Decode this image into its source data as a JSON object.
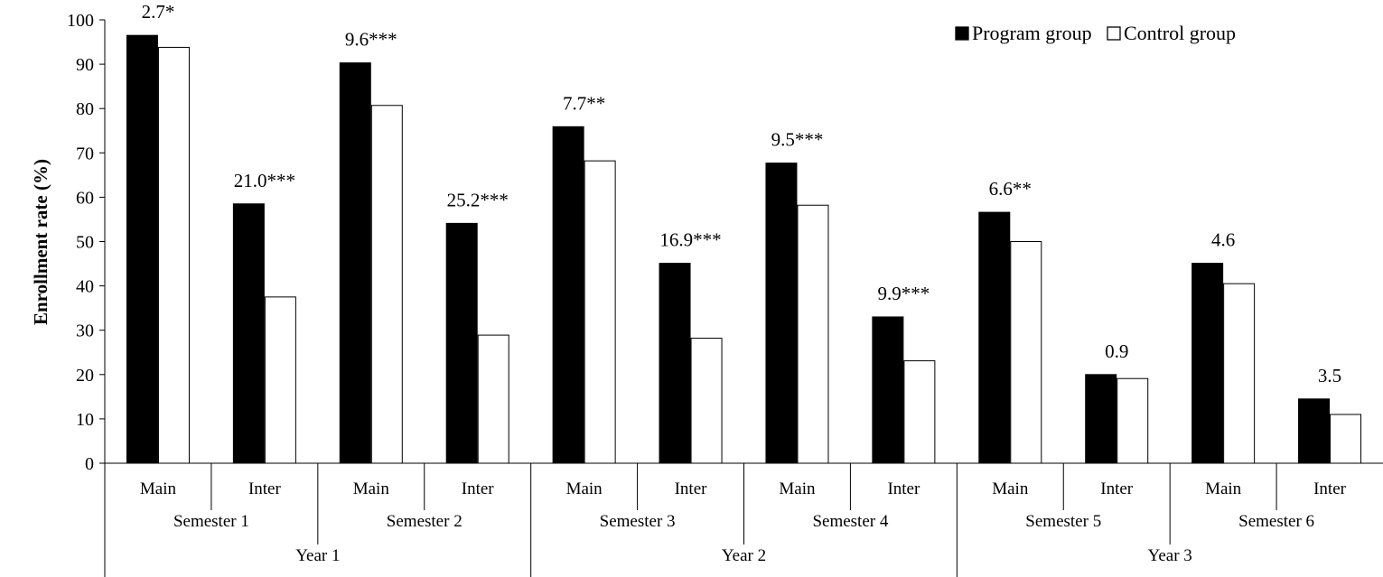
{
  "chart_data": {
    "type": "bar",
    "ylabel": "Enrollment rate (%)",
    "ylim": [
      0,
      100
    ],
    "yticks": [
      0,
      10,
      20,
      30,
      40,
      50,
      60,
      70,
      80,
      90,
      100
    ],
    "grid": false,
    "legend_position": "top-right",
    "categories": [
      "Main",
      "Inter",
      "Main",
      "Inter",
      "Main",
      "Inter",
      "Main",
      "Inter",
      "Main",
      "Inter",
      "Main",
      "Inter"
    ],
    "semesters": [
      {
        "label": "Semester 1",
        "start": 0,
        "span": 2
      },
      {
        "label": "Semester 2",
        "start": 2,
        "span": 2
      },
      {
        "label": "Semester 3",
        "start": 4,
        "span": 2
      },
      {
        "label": "Semester 4",
        "start": 6,
        "span": 2
      },
      {
        "label": "Semester 5",
        "start": 8,
        "span": 2
      },
      {
        "label": "Semester 6",
        "start": 10,
        "span": 2
      }
    ],
    "years": [
      {
        "label": "Year 1",
        "start": 0,
        "span": 4
      },
      {
        "label": "Year 2",
        "start": 4,
        "span": 4
      },
      {
        "label": "Year 3",
        "start": 8,
        "span": 4
      }
    ],
    "series": [
      {
        "name": "Program group",
        "color": "#000000",
        "values": [
          96.5,
          58.5,
          90.3,
          54.1,
          75.9,
          45.1,
          67.7,
          33.0,
          56.6,
          20.0,
          45.1,
          14.5
        ]
      },
      {
        "name": "Control group",
        "color": "#ffffff",
        "values": [
          93.8,
          37.5,
          80.7,
          28.9,
          68.2,
          28.2,
          58.2,
          23.1,
          50.0,
          19.1,
          40.5,
          11.0
        ]
      }
    ],
    "annotations": [
      "2.7*",
      "21.0***",
      "9.6***",
      "25.2***",
      "7.7**",
      "16.9***",
      "9.5***",
      "9.9***",
      "6.6**",
      "0.9",
      "4.6",
      "3.5"
    ]
  }
}
